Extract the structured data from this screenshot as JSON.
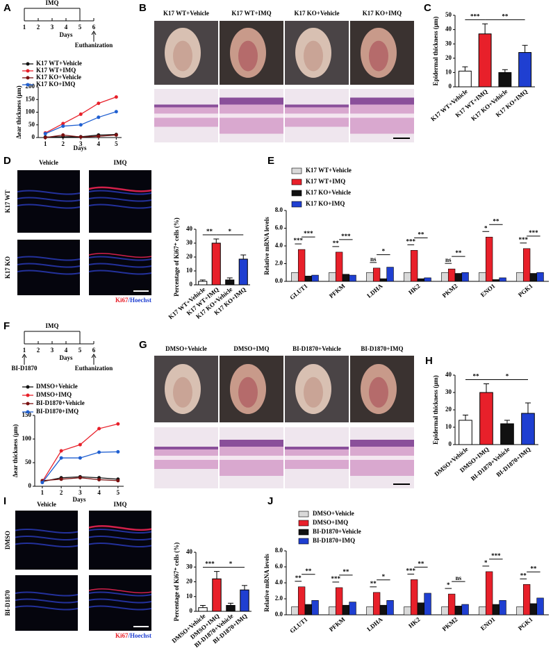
{
  "panel_labels": [
    "A",
    "B",
    "C",
    "D",
    "E",
    "F",
    "G",
    "H",
    "I",
    "J"
  ],
  "timelines": [
    {
      "title": "IMQ",
      "ticks": [
        "1",
        "2",
        "3",
        "4",
        "5",
        "6"
      ],
      "axis_label": "Days",
      "end_label": "Euthanization"
    },
    {
      "title": "IMQ",
      "ticks": [
        "1",
        "2",
        "3",
        "4",
        "5",
        "6"
      ],
      "axis_label": "Days",
      "start_label": "BI-D1870",
      "end_label": "Euthanization"
    }
  ],
  "photo_panels": [
    {
      "labels": [
        "K17 WT+Vehicle",
        "K17 WT+IMQ",
        "K17 KO+Vehicle",
        "K17 KO+IMQ"
      ]
    },
    {
      "labels": [
        "DMSO+Vehicle",
        "DMSO+IMQ",
        "BI-D1870+Vehicle",
        "BI-D1870+IMQ"
      ]
    }
  ],
  "if_panels": [
    {
      "columns": [
        "Vehicle",
        "IMQ"
      ],
      "rows": [
        "K17 WT",
        "K17 KO"
      ],
      "stain_red": "Ki67",
      "stain_blue": "/Hoechst"
    },
    {
      "columns": [
        "Vehicle",
        "IMQ"
      ],
      "rows": [
        "DMSO",
        "BI-D1870"
      ],
      "stain_red": "Ki67",
      "stain_blue": "/Hoechst"
    }
  ],
  "chart_data": [
    {
      "type": "line",
      "ylabel": "Δear thickness (μm)",
      "xlabel": "Days",
      "x": [
        1,
        2,
        3,
        4,
        5
      ],
      "xlim": [
        0.6,
        5.3
      ],
      "xticks": [
        1,
        2,
        3,
        4,
        5
      ],
      "ylim": [
        0,
        200
      ],
      "yticks": [
        0,
        50,
        100,
        150,
        200
      ],
      "series": [
        {
          "name": "K17 WT+Vehicle",
          "color": "#111111",
          "values": [
            2,
            3,
            3,
            10,
            12
          ]
        },
        {
          "name": "K17 WT+IMQ",
          "color": "#e8202a",
          "values": [
            18,
            55,
            92,
            135,
            160
          ]
        },
        {
          "name": "K17 KO+Vehicle",
          "color": "#7a1010",
          "values": [
            0,
            10,
            2,
            5,
            10
          ]
        },
        {
          "name": "K17 KO+IMQ",
          "color": "#1f5fd1",
          "values": [
            15,
            45,
            50,
            80,
            102
          ]
        }
      ]
    },
    {
      "type": "bar",
      "ylabel": "Epidermal thickness (μm)",
      "categories": [
        "K17 WT+Vehicle",
        "K17 WT+IMQ",
        "K17 KO+Vehicle",
        "K17 KO+IMQ"
      ],
      "values": [
        11,
        37,
        10,
        24
      ],
      "errors": [
        3,
        7,
        2,
        5
      ],
      "colors": [
        "#ffffff",
        "#e8202a",
        "#111111",
        "#1f3fd1"
      ],
      "ylim": [
        0,
        50
      ],
      "yticks": [
        0,
        10,
        20,
        30,
        40,
        50
      ],
      "annotations": [
        "***",
        "**"
      ]
    },
    {
      "type": "bar",
      "ylabel": "Percentage of Ki67⁺ cells (%)",
      "categories": [
        "K17 WT+Vehicle",
        "K17 WT+IMQ",
        "K17 KO+Vehicle",
        "K17 KO+IMQ"
      ],
      "values": [
        2.5,
        30,
        3.5,
        18.5
      ],
      "errors": [
        1,
        3,
        1.5,
        3
      ],
      "colors": [
        "#ffffff",
        "#e8202a",
        "#111111",
        "#1f3fd1"
      ],
      "ylim": [
        0,
        40
      ],
      "yticks": [
        0,
        10,
        20,
        30,
        40
      ],
      "annotations": [
        "**",
        "*"
      ]
    },
    {
      "type": "grouped_bar",
      "ylabel": "Relative mRNA levels",
      "categories": [
        "GLUT1",
        "PFKM",
        "LDHA",
        "HK2",
        "PKM2",
        "ENO1",
        "PGK1"
      ],
      "series": [
        {
          "name": "K17 WT+Vehicle",
          "color": "#d9d9d9",
          "values": [
            1,
            1,
            1,
            1,
            1,
            1,
            1
          ]
        },
        {
          "name": "K17 WT+IMQ",
          "color": "#e8202a",
          "values": [
            3.6,
            3.3,
            1.5,
            3.5,
            1.4,
            5.0,
            3.7
          ]
        },
        {
          "name": "K17 KO+Vehicle",
          "color": "#111111",
          "values": [
            0.6,
            0.8,
            0.3,
            0.3,
            0.9,
            0.2,
            0.9
          ]
        },
        {
          "name": "K17 KO+IMQ",
          "color": "#1f3fd1",
          "values": [
            0.7,
            0.7,
            1.6,
            0.4,
            1.0,
            0.4,
            1.0
          ]
        }
      ],
      "ylim": [
        0,
        8
      ],
      "yticks": [
        {
          "value": 0,
          "label": "0.0"
        },
        {
          "value": 2,
          "label": "2.0"
        },
        {
          "value": 4,
          "label": "4.0"
        },
        {
          "value": 6,
          "label": "6.0"
        },
        {
          "value": 8,
          "label": "8.0"
        }
      ],
      "annotations": [
        "***",
        "***",
        "**",
        "***",
        "ns",
        "*",
        "***",
        "**",
        "ns",
        "**",
        "*",
        "**",
        "***",
        "***"
      ]
    },
    {
      "type": "line",
      "ylabel": "Δear thickness (μm)",
      "xlabel": "Days",
      "x": [
        1,
        2,
        3,
        4,
        5
      ],
      "xlim": [
        0.6,
        5.3
      ],
      "xticks": [
        1,
        2,
        3,
        4,
        5
      ],
      "ylim": [
        0,
        150
      ],
      "yticks": [
        0,
        50,
        100,
        150
      ],
      "series": [
        {
          "name": "DMSO+Vehicle",
          "color": "#111111",
          "values": [
            10,
            18,
            20,
            18,
            15
          ]
        },
        {
          "name": "DMSO+IMQ",
          "color": "#e8202a",
          "values": [
            10,
            75,
            88,
            122,
            132
          ]
        },
        {
          "name": "BI-D1870+Vehicle",
          "color": "#7a1010",
          "values": [
            12,
            15,
            18,
            14,
            12
          ]
        },
        {
          "name": "BI-D1870+IMQ",
          "color": "#1f5fd1",
          "values": [
            8,
            60,
            60,
            72,
            73
          ]
        }
      ]
    },
    {
      "type": "bar",
      "ylabel": "Epidermal thickness (μm)",
      "categories": [
        "DMSO+Vehicle",
        "DMSO+IMQ",
        "BI-D1870+Vehicle",
        "BI-D1870+IMQ"
      ],
      "values": [
        14,
        30,
        12,
        18
      ],
      "errors": [
        3,
        5,
        2,
        6
      ],
      "colors": [
        "#ffffff",
        "#e8202a",
        "#111111",
        "#1f3fd1"
      ],
      "ylim": [
        0,
        40
      ],
      "yticks": [
        0,
        10,
        20,
        30,
        40
      ],
      "annotations": [
        "**",
        "*"
      ]
    },
    {
      "type": "bar",
      "ylabel": "Percentage of Ki67⁺ cells (%)",
      "categories": [
        "DMSO+Vehicle",
        "DMSO+IMQ",
        "BI-D1870+Vehicle",
        "BI-D1870+IMQ"
      ],
      "values": [
        2.5,
        22,
        4,
        14.5
      ],
      "errors": [
        1.5,
        5,
        1.5,
        3
      ],
      "colors": [
        "#ffffff",
        "#e8202a",
        "#111111",
        "#1f3fd1"
      ],
      "ylim": [
        0,
        40
      ],
      "yticks": [
        0,
        10,
        20,
        30,
        40
      ],
      "annotations": [
        "***",
        "*"
      ]
    },
    {
      "type": "grouped_bar",
      "ylabel": "Relative mRNA levels",
      "categories": [
        "GLUT1",
        "PFKM",
        "LDHA",
        "HK2",
        "PKM2",
        "ENO1",
        "PGK1"
      ],
      "series": [
        {
          "name": "DMSO+Vehicle",
          "color": "#d9d9d9",
          "values": [
            1,
            1,
            1,
            1,
            1,
            1,
            1
          ]
        },
        {
          "name": "DMSO+IMQ",
          "color": "#e8202a",
          "values": [
            3.5,
            3.4,
            2.8,
            4.4,
            2.6,
            5.4,
            3.8
          ]
        },
        {
          "name": "BI-D1870+Vehicle",
          "color": "#111111",
          "values": [
            1.3,
            1.2,
            1.2,
            1.5,
            1.1,
            1.3,
            1.4
          ]
        },
        {
          "name": "BI-D1870+IMQ",
          "color": "#1f3fd1",
          "values": [
            1.8,
            1.6,
            1.8,
            2.7,
            1.3,
            1.8,
            2.1
          ]
        }
      ],
      "ylim": [
        0,
        8
      ],
      "yticks": [
        {
          "value": 0,
          "label": "0.0"
        },
        {
          "value": 2,
          "label": "2.0"
        },
        {
          "value": 4,
          "label": "4.0"
        },
        {
          "value": 6,
          "label": "6.0"
        },
        {
          "value": 8,
          "label": "8.0"
        }
      ],
      "annotations": [
        "**",
        "**",
        "***",
        "**",
        "**",
        "*",
        "***",
        "**",
        "*",
        "ns",
        "*",
        "***",
        "**",
        "**"
      ]
    }
  ]
}
